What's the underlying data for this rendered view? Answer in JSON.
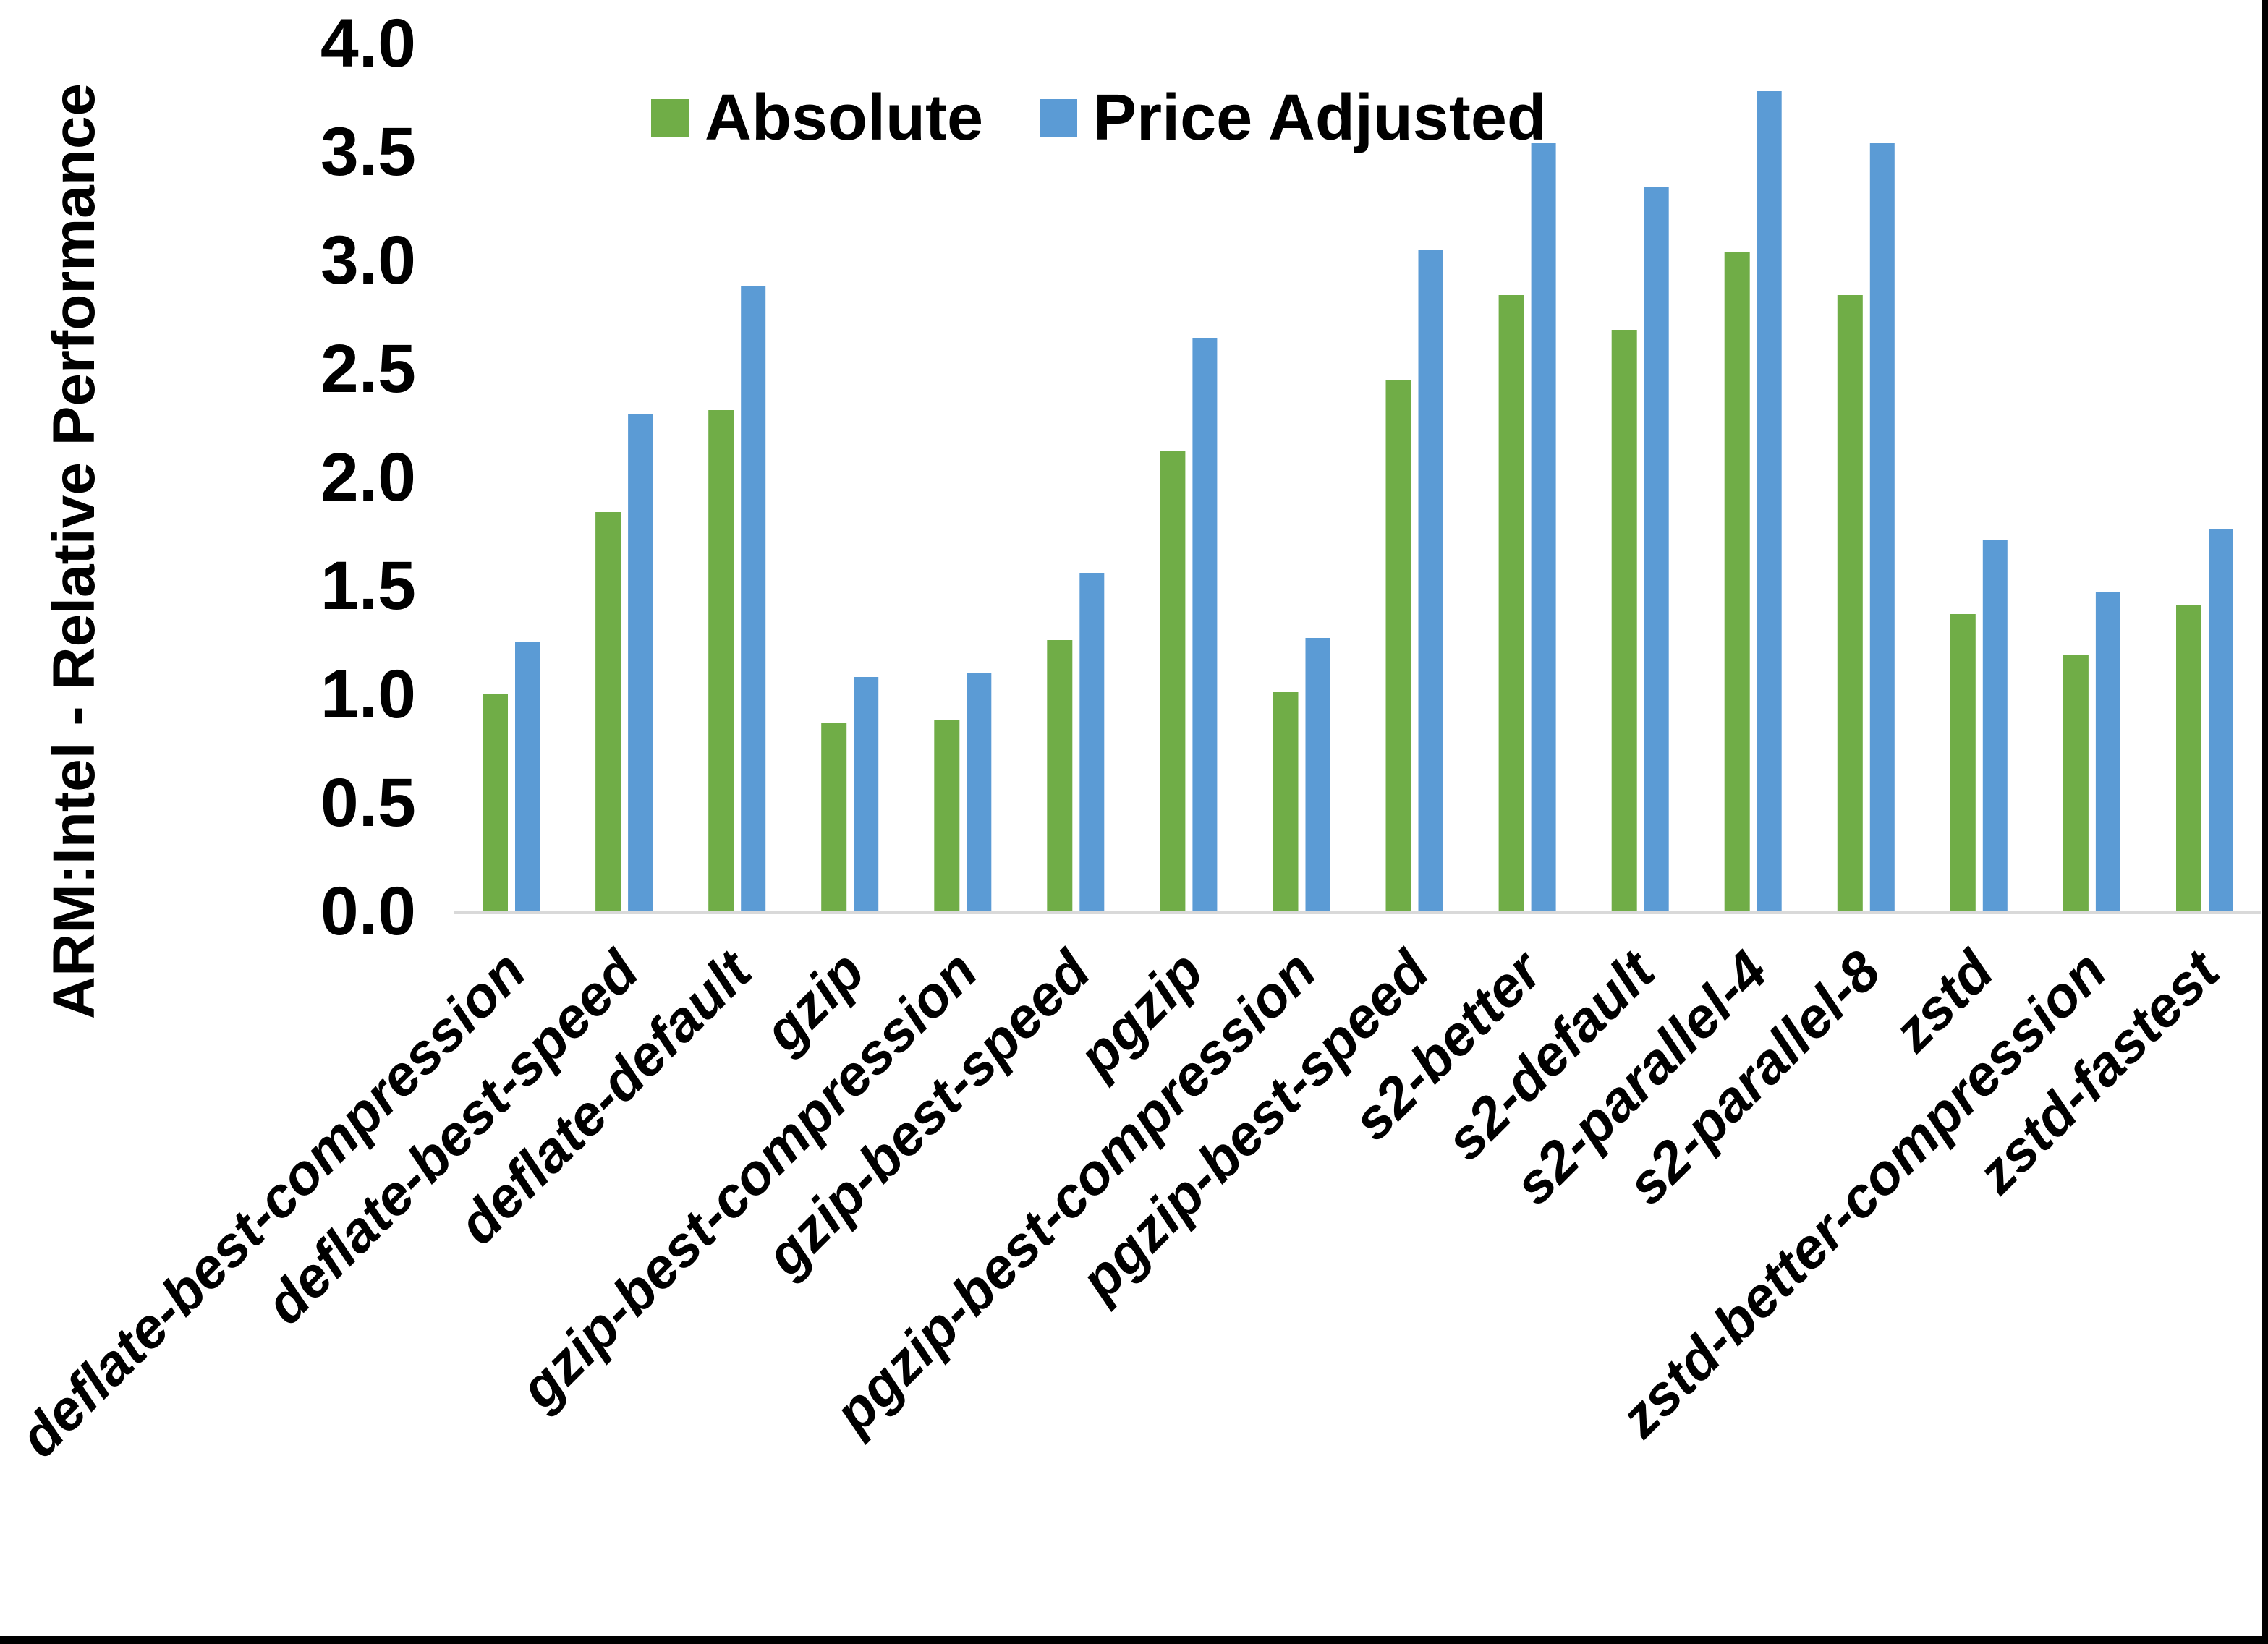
{
  "page": {
    "background": "#FFFFFF",
    "border_color": "#000000"
  },
  "chart_data": {
    "type": "bar",
    "title": "",
    "xlabel": "",
    "ylabel": "ARM:Intel - Relative Performance",
    "ylim": [
      0.0,
      4.0
    ],
    "ytick_step": 0.5,
    "yticks": [
      "0.0",
      "0.5",
      "1.0",
      "1.5",
      "2.0",
      "2.5",
      "3.0",
      "3.5",
      "4.0"
    ],
    "grid": "off",
    "legend_position": "top-center-inside",
    "axis_line_color": "#D9D9D9",
    "categories": [
      "deflate-best-compression",
      "deflate-best-speed",
      "deflate-default",
      "gzip",
      "gzip-best-compression",
      "gzip-best-speed",
      "pgzip",
      "pgzip-best-compression",
      "pgzip-best-speed",
      "s2-better",
      "s2-default",
      "s2-parallel-4",
      "s2-parallel-8",
      "zstd",
      "zstd-better-compression",
      "zstd-fastest"
    ],
    "series": [
      {
        "name": "Absolute",
        "color": "#70AD47",
        "values": [
          1.0,
          1.84,
          2.31,
          0.87,
          0.88,
          1.25,
          2.12,
          1.01,
          2.45,
          2.84,
          2.68,
          3.04,
          2.84,
          1.37,
          1.18,
          1.41
        ]
      },
      {
        "name": "Price Adjusted",
        "color": "#5B9BD5",
        "values": [
          1.24,
          2.29,
          2.88,
          1.08,
          1.1,
          1.56,
          2.64,
          1.26,
          3.05,
          3.54,
          3.34,
          3.78,
          3.54,
          1.71,
          1.47,
          1.76
        ]
      }
    ]
  }
}
